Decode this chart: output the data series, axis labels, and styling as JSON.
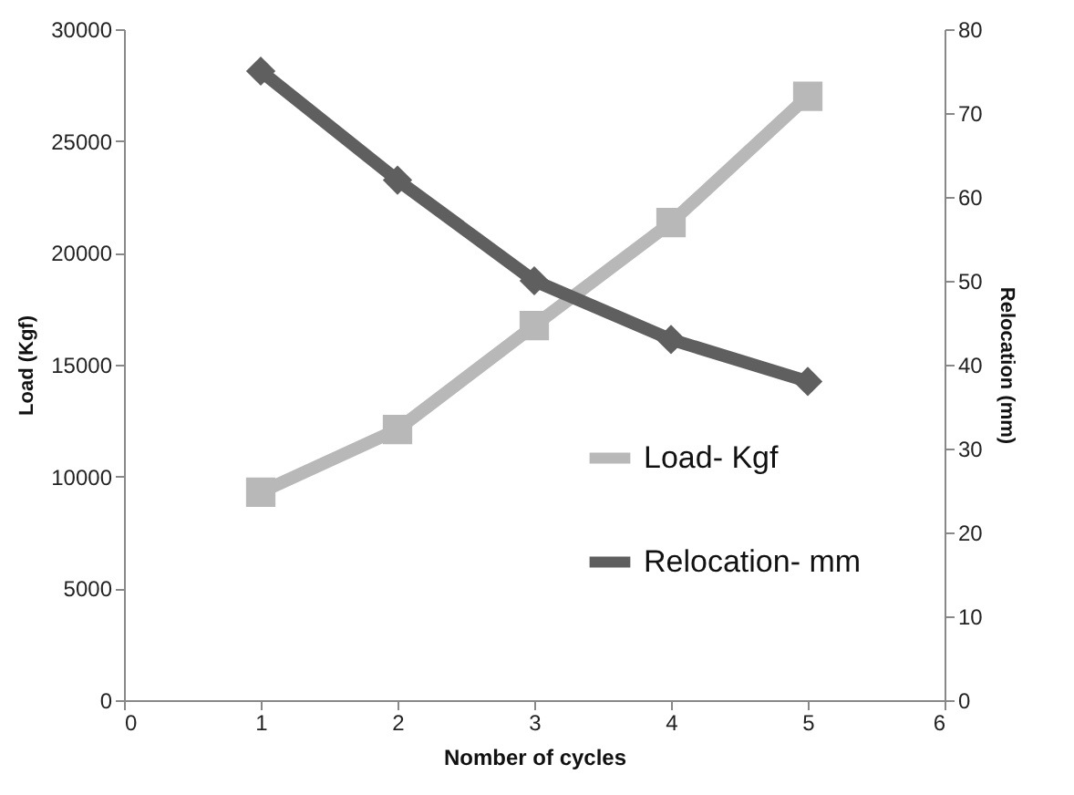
{
  "chart_data": {
    "type": "line",
    "xlabel": "Nomber of cycles",
    "ylabel": "Load (Kgf)",
    "y2label": "Relocation (mm)",
    "x": [
      1,
      2,
      3,
      4,
      5
    ],
    "xlim": [
      0,
      6
    ],
    "xticks": [
      0,
      1,
      2,
      3,
      4,
      5,
      6
    ],
    "ylim": [
      0,
      30000
    ],
    "yticks": [
      0,
      5000,
      10000,
      15000,
      20000,
      25000,
      30000
    ],
    "y2lim": [
      0,
      80
    ],
    "y2ticks": [
      0,
      10,
      20,
      30,
      40,
      50,
      60,
      70,
      80
    ],
    "series": [
      {
        "name": "Load- Kgf",
        "color": "#b8b8b8",
        "marker": "square",
        "values": [
          9300,
          12100,
          16750,
          21350,
          27000
        ]
      },
      {
        "name": "Relocation- mm",
        "color": "#5f5f5f",
        "marker": "diamond",
        "axis": "y2",
        "values": [
          75,
          62,
          50,
          43,
          38
        ]
      }
    ],
    "grid": false,
    "legend": "right",
    "line_style": "solid"
  }
}
